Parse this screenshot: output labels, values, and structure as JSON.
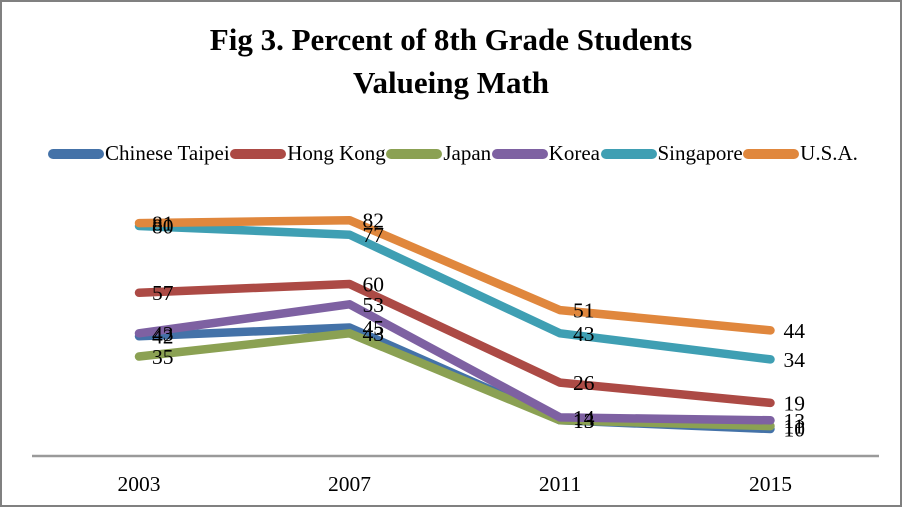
{
  "title": {
    "line1": "Fig 3. Percent of 8th Grade Students",
    "line2": "Valueing Math"
  },
  "chart_data": {
    "type": "line",
    "title": "Fig 3. Percent of 8th Grade Students Valueing Math",
    "title_lines": [
      "Fig 3. Percent of 8th Grade Students",
      "Valueing Math"
    ],
    "categories": [
      "2003",
      "2007",
      "2011",
      "2015"
    ],
    "series": [
      {
        "name": "Chinese Taipei",
        "color": "#4472A8",
        "values": [
          42,
          45,
          13,
          10
        ]
      },
      {
        "name": "Hong Kong",
        "color": "#AC4A45",
        "values": [
          57,
          60,
          26,
          19
        ]
      },
      {
        "name": "Japan",
        "color": "#8BA153",
        "values": [
          35,
          43,
          13,
          11
        ]
      },
      {
        "name": "Korea",
        "color": "#7E61A2",
        "values": [
          43,
          53,
          14,
          13
        ]
      },
      {
        "name": "Singapore",
        "color": "#3F9FB3",
        "values": [
          80,
          77,
          43,
          34
        ]
      },
      {
        "name": "U.S.A.",
        "color": "#E0873D",
        "values": [
          81,
          82,
          51,
          44
        ]
      }
    ],
    "data_labels": true,
    "data_label_position": "right",
    "legend_position": "top",
    "grid": false,
    "y_axis_visible": false,
    "ylim": [
      0,
      90
    ],
    "axis_line_color": "#9A9A9A"
  }
}
